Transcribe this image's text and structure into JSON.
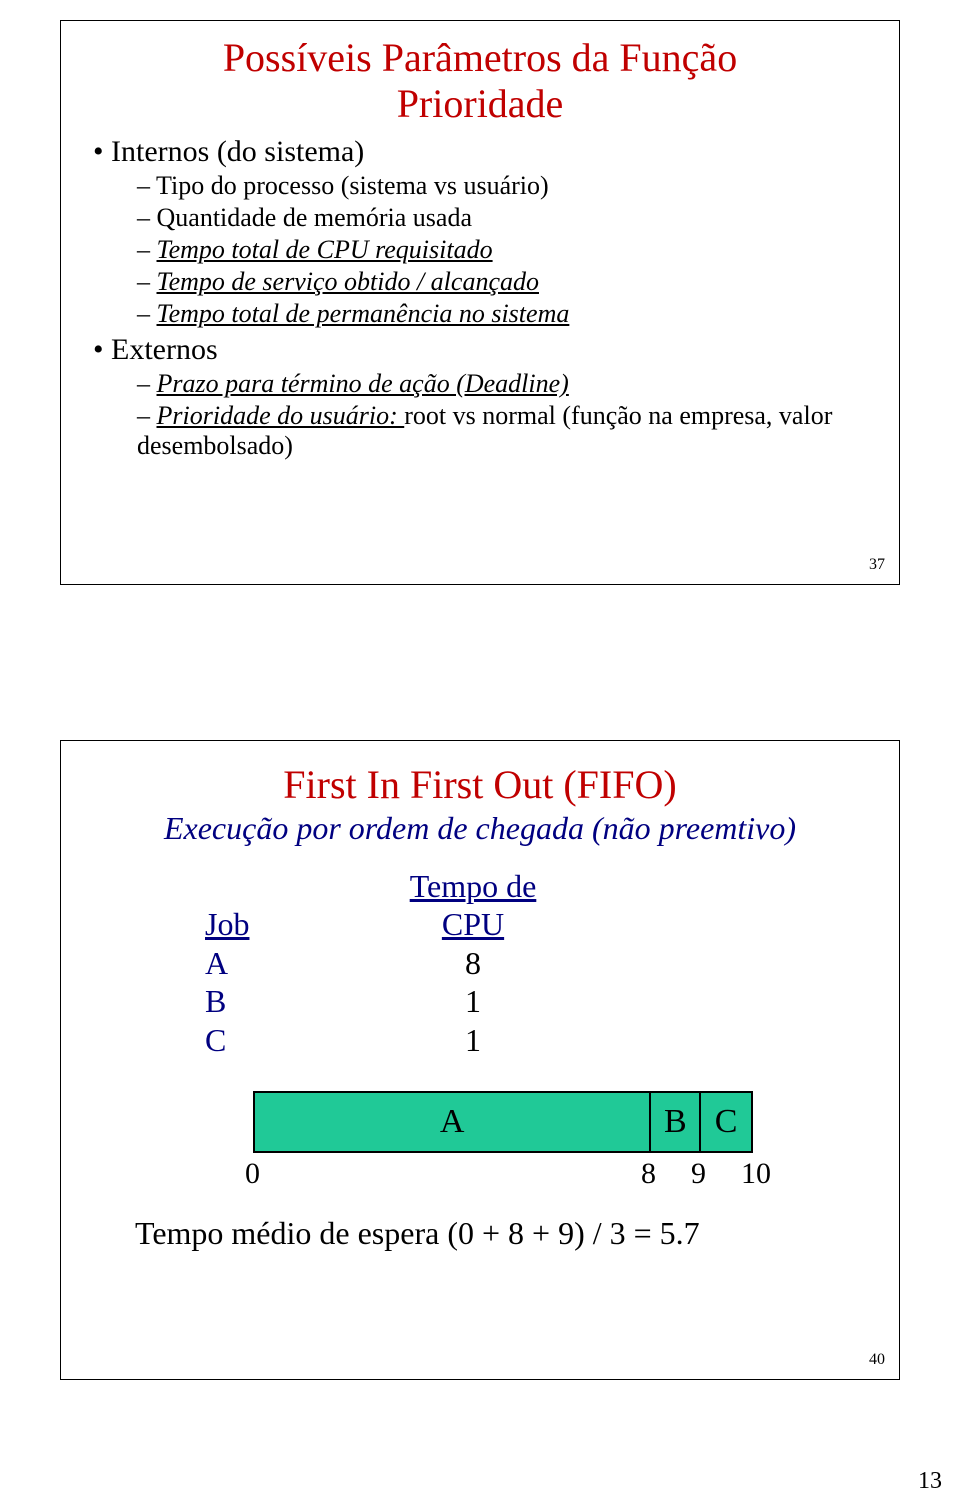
{
  "slide1": {
    "title_line1": "Possíveis Parâmetros da Função",
    "title_line2": "Prioridade",
    "bullet1": "Internos (do sistema)",
    "s1a": "Tipo do processo (sistema vs usuário)",
    "s1b": "Quantidade de memória usada",
    "s1c": "Tempo total de CPU requisitado",
    "s1d": "Tempo de serviço obtido / alcançado",
    "s1e": "Tempo total de permanência no sistema",
    "bullet2": "Externos",
    "s2a": "Prazo para término de ação (Deadline)",
    "s2b_u": "Prioridade do usuário: ",
    "s2b_tail": "root vs normal (função na empresa, valor desembolsado)",
    "pagenum": "37"
  },
  "slide2": {
    "title": "First In First Out (FIFO)",
    "subtitle": "Execução por ordem de chegada (não preemtivo)",
    "hdr_job": "Job",
    "hdr_cpu": "Tempo de CPU",
    "rows": [
      {
        "job": "A",
        "cpu": "8"
      },
      {
        "job": "B",
        "cpu": "1"
      },
      {
        "job": "C",
        "cpu": "1"
      }
    ],
    "gantt": {
      "A": "A",
      "B": "B",
      "C": "C",
      "ticks": {
        "t0": "0",
        "t8": "8",
        "t9": "9",
        "t10": "10"
      },
      "bar_color": "#20c997",
      "border_color": "#000000"
    },
    "avg": "Tempo médio de espera (0 + 8 + 9) / 3 = 5.7",
    "pagenum": "40"
  },
  "corner_page": "13",
  "colors": {
    "title": "#c00000",
    "navy": "#000080",
    "text": "#000000",
    "bg": "#ffffff"
  }
}
